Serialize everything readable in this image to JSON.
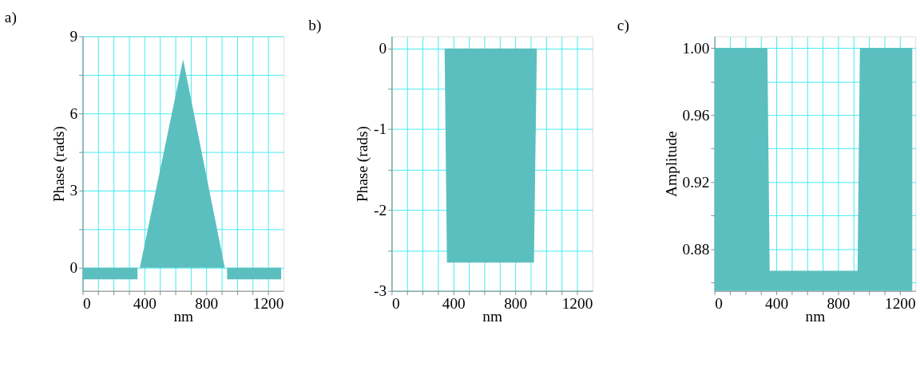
{
  "chart_data": [
    {
      "type": "area",
      "title": "a)",
      "xlabel": "nm",
      "ylabel": "Phase (rads)",
      "grid": true,
      "xlim": [
        0,
        1300
      ],
      "ylim": [
        -0.9,
        9
      ],
      "xticks": [
        0,
        {
          "value": 100,
          "label": null
        },
        {
          "value": 200,
          "label": null
        },
        {
          "value": 300,
          "label": null
        },
        400,
        {
          "value": 500,
          "label": null
        },
        {
          "value": 600,
          "label": null
        },
        {
          "value": 700,
          "label": null
        },
        800,
        {
          "value": 900,
          "label": null
        },
        {
          "value": 1000,
          "label": null
        },
        {
          "value": 1100,
          "label": null
        },
        1200
      ],
      "yticks": [
        0,
        {
          "value": 1.5,
          "label": null
        },
        3,
        {
          "value": 4.5,
          "label": null
        },
        6,
        {
          "value": 7.5,
          "label": null
        },
        9
      ],
      "series": [
        {
          "color": "#5bbfbf",
          "x": [
            0,
            355
          ],
          "values": [
            -0.45,
            -0.45
          ]
        },
        {
          "color": "#5bbfbf",
          "x": [
            370,
            650,
            920
          ],
          "values": [
            0,
            8.1,
            0
          ]
        },
        {
          "color": "#5bbfbf",
          "x": [
            935,
            1285
          ],
          "values": [
            -0.45,
            -0.45
          ]
        }
      ]
    },
    {
      "type": "area",
      "title": "b)",
      "xlabel": "nm",
      "ylabel": "Phase (rads)",
      "grid": true,
      "xlim": [
        0,
        1300
      ],
      "ylim": [
        -3,
        0.15
      ],
      "xticks": [
        0,
        {
          "value": 100,
          "label": null
        },
        {
          "value": 200,
          "label": null
        },
        {
          "value": 300,
          "label": null
        },
        400,
        {
          "value": 500,
          "label": null
        },
        {
          "value": 600,
          "label": null
        },
        {
          "value": 700,
          "label": null
        },
        800,
        {
          "value": 900,
          "label": null
        },
        {
          "value": 1000,
          "label": null
        },
        {
          "value": 1100,
          "label": null
        },
        1200
      ],
      "yticks": [
        -3,
        {
          "value": -2.5,
          "label": null
        },
        -2,
        {
          "value": -1.5,
          "label": null
        },
        -1,
        {
          "value": -0.5,
          "label": null
        },
        0
      ],
      "series": [
        {
          "color": "#5bbfbf",
          "x": [
            343,
            358,
            921,
            940
          ],
          "values": [
            0,
            -2.65,
            -2.65,
            0
          ]
        }
      ]
    },
    {
      "type": "area",
      "title": "c)",
      "xlabel": "nm",
      "ylabel": "Amplitude",
      "grid": true,
      "xlim": [
        0,
        1300
      ],
      "ylim": [
        0.855,
        1.007
      ],
      "xticks": [
        0,
        {
          "value": 100,
          "label": null
        },
        {
          "value": 200,
          "label": null
        },
        {
          "value": 300,
          "label": null
        },
        400,
        {
          "value": 500,
          "label": null
        },
        {
          "value": 600,
          "label": null
        },
        {
          "value": 700,
          "label": null
        },
        800,
        {
          "value": 900,
          "label": null
        },
        {
          "value": 1000,
          "label": null
        },
        {
          "value": 1100,
          "label": null
        },
        1200
      ],
      "yticks": [
        {
          "value": 0.86,
          "label": null
        },
        0.88,
        {
          "value": 0.9,
          "label": null
        },
        0.92,
        {
          "value": 0.94,
          "label": null
        },
        0.96,
        {
          "value": 0.98,
          "label": null
        },
        {
          "value": 1.0,
          "label": "1.00"
        }
      ],
      "series": [
        {
          "color": "#5bbfbf",
          "x": [
            0,
            342,
            357,
            926,
            941,
            1280
          ],
          "values": [
            1.0,
            1.0,
            0.867,
            0.867,
            1.0,
            1.0
          ]
        }
      ]
    }
  ]
}
